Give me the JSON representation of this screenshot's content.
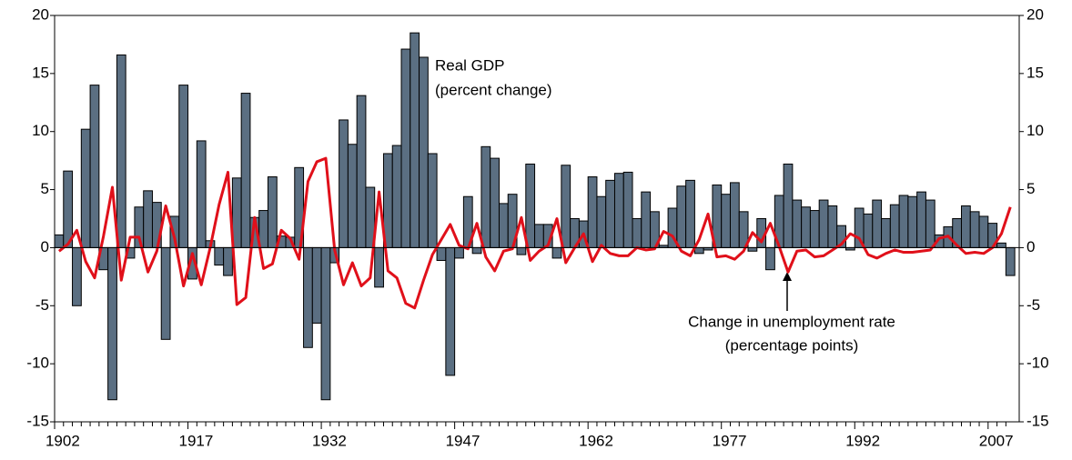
{
  "chart_data": {
    "type": "bar",
    "categories": [
      "1902",
      null,
      null,
      null,
      null,
      null,
      null,
      null,
      null,
      null,
      null,
      null,
      null,
      null,
      null,
      "1917",
      null,
      null,
      null,
      null,
      null,
      null,
      null,
      null,
      null,
      null,
      null,
      null,
      null,
      null,
      "1932",
      null,
      null,
      null,
      null,
      null,
      null,
      null,
      null,
      null,
      null,
      null,
      null,
      null,
      null,
      "1947",
      null,
      null,
      null,
      null,
      null,
      null,
      null,
      null,
      null,
      null,
      null,
      null,
      null,
      null,
      "1962",
      null,
      null,
      null,
      null,
      null,
      null,
      null,
      null,
      null,
      null,
      null,
      null,
      null,
      null,
      "1977",
      null,
      null,
      null,
      null,
      null,
      null,
      null,
      null,
      null,
      null,
      null,
      null,
      null,
      null,
      "1992",
      null,
      null,
      null,
      null,
      null,
      null,
      null,
      null,
      null,
      null,
      null,
      null,
      null,
      null,
      "2007",
      null,
      null
    ],
    "series": [
      {
        "name": "Real GDP (percent change)",
        "type": "bar",
        "color": "#5b6f82",
        "values": [
          1.1,
          6.6,
          -5.0,
          10.2,
          14.0,
          -1.9,
          -13.1,
          16.6,
          -0.9,
          3.5,
          4.9,
          3.9,
          -7.9,
          2.7,
          14.0,
          -2.7,
          9.2,
          0.6,
          -1.5,
          -2.4,
          6.0,
          13.3,
          2.6,
          3.2,
          6.1,
          1.0,
          0.9,
          6.9,
          -8.6,
          -6.5,
          -13.1,
          -1.3,
          11.0,
          8.9,
          13.1,
          5.2,
          -3.4,
          8.1,
          8.8,
          17.1,
          18.5,
          16.4,
          8.1,
          -1.1,
          -11.0,
          -0.9,
          4.4,
          -0.5,
          8.7,
          7.7,
          3.8,
          4.6,
          -0.6,
          7.2,
          2.0,
          2.0,
          -0.9,
          7.1,
          2.5,
          2.3,
          6.1,
          4.4,
          5.8,
          6.4,
          6.5,
          2.5,
          4.8,
          3.1,
          0.2,
          3.4,
          5.3,
          5.8,
          -0.5,
          -0.2,
          5.4,
          4.6,
          5.6,
          3.1,
          -0.3,
          2.5,
          -1.9,
          4.5,
          7.2,
          4.1,
          3.5,
          3.2,
          4.1,
          3.6,
          1.9,
          -0.2,
          3.4,
          2.9,
          4.1,
          2.5,
          3.7,
          4.5,
          4.4,
          4.8,
          4.1,
          1.1,
          1.8,
          2.5,
          3.6,
          3.1,
          2.7,
          2.1,
          0.4,
          -2.4
        ]
      },
      {
        "name": "Change in unemployment rate (percentage points)",
        "type": "line",
        "color": "#e0101a",
        "axis": "y2",
        "values": [
          -0.3,
          0.3,
          1.5,
          -1.2,
          -2.6,
          1.0,
          5.2,
          -2.8,
          0.9,
          0.9,
          -2.1,
          -0.3,
          3.6,
          0.8,
          -3.3,
          -0.5,
          -3.2,
          0.0,
          3.7,
          6.5,
          -4.9,
          -4.3,
          2.6,
          -1.8,
          -1.4,
          1.5,
          0.8,
          -1.0,
          5.7,
          7.4,
          7.7,
          -0.2,
          -3.2,
          -1.3,
          -3.3,
          -2.6,
          4.8,
          -2.0,
          -2.6,
          -4.8,
          -5.2,
          -2.8,
          -0.6,
          0.7,
          2.0,
          0.2,
          -0.1,
          2.1,
          -0.8,
          -2.0,
          -0.3,
          -0.1,
          2.6,
          -1.1,
          -0.3,
          0.2,
          2.5,
          -1.3,
          0.0,
          1.2,
          -1.2,
          0.2,
          -0.5,
          -0.7,
          -0.7,
          0.0,
          -0.2,
          -0.1,
          1.4,
          1.0,
          -0.3,
          -0.7,
          0.7,
          2.9,
          -0.8,
          -0.7,
          -1.0,
          -0.3,
          1.3,
          0.5,
          2.1,
          0.1,
          -2.1,
          -0.3,
          -0.2,
          -0.8,
          -0.7,
          -0.2,
          0.3,
          1.2,
          0.8,
          -0.6,
          -0.9,
          -0.5,
          -0.2,
          -0.4,
          -0.4,
          -0.3,
          -0.2,
          0.8,
          1.0,
          0.2,
          -0.5,
          -0.4,
          -0.5,
          0.0,
          1.2,
          3.5
        ]
      }
    ],
    "annotations": [
      "Real GDP",
      "(percent change)",
      "Change in unemployment rate",
      "(percentage points)"
    ],
    "ylim": [
      -15,
      20
    ],
    "yticks": [
      -15,
      -10,
      -5,
      0,
      5,
      10,
      15,
      20
    ],
    "y2lim": [
      -15,
      20
    ],
    "y2ticks": [
      -15,
      -10,
      -5,
      0,
      5,
      10,
      15,
      20
    ]
  }
}
